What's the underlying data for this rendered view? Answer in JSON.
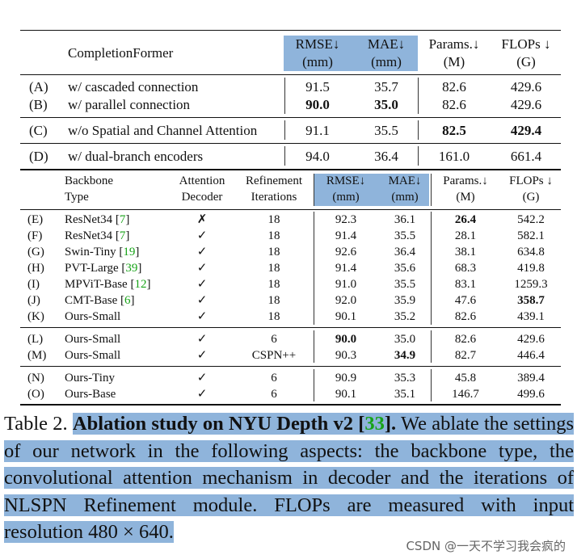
{
  "table1": {
    "header": {
      "title": "CompletionFormer",
      "rmse": "RMSE↓",
      "rmse_unit": "(mm)",
      "mae": "MAE↓",
      "mae_unit": "(mm)",
      "params": "Params.↓",
      "params_unit": "(M)",
      "flops": "FLOPs ↓",
      "flops_unit": "(G)"
    },
    "rows": [
      {
        "id": "(A)",
        "label": "w/ cascaded connection",
        "rmse": "91.5",
        "mae": "35.7",
        "params": "82.6",
        "flops": "429.6"
      },
      {
        "id": "(B)",
        "label": "w/ parallel connection",
        "rmse": "90.0",
        "mae": "35.0",
        "params": "82.6",
        "flops": "429.6"
      },
      {
        "id": "(C)",
        "label": "w/o Spatial and Channel Attention",
        "rmse": "91.1",
        "mae": "35.5",
        "params": "82.5",
        "flops": "429.4"
      },
      {
        "id": "(D)",
        "label": "w/ dual-branch encoders",
        "rmse": "94.0",
        "mae": "36.4",
        "params": "161.0",
        "flops": "661.4"
      }
    ]
  },
  "table2": {
    "header": {
      "backbone1": "Backbone",
      "backbone2": "Type",
      "att1": "Attention",
      "att2": "Decoder",
      "ref1": "Refinement",
      "ref2": "Iterations",
      "rmse": "RMSE↓",
      "rmse_unit": "(mm)",
      "mae": "MAE↓",
      "mae_unit": "(mm)",
      "params": "Params.↓",
      "params_unit": "(M)",
      "flops": "FLOPs ↓",
      "flops_unit": "(G)"
    },
    "rows": [
      {
        "id": "(E)",
        "name": "ResNet34",
        "cite": "7",
        "att": "✗",
        "iter": "18",
        "rmse": "92.3",
        "mae": "36.1",
        "params": "26.4",
        "flops": "542.2"
      },
      {
        "id": "(F)",
        "name": "ResNet34",
        "cite": "7",
        "att": "✓",
        "iter": "18",
        "rmse": "91.4",
        "mae": "35.5",
        "params": "28.1",
        "flops": "582.1"
      },
      {
        "id": "(G)",
        "name": "Swin-Tiny",
        "cite": "19",
        "att": "✓",
        "iter": "18",
        "rmse": "92.6",
        "mae": "36.4",
        "params": "38.1",
        "flops": "634.8"
      },
      {
        "id": "(H)",
        "name": "PVT-Large",
        "cite": "39",
        "att": "✓",
        "iter": "18",
        "rmse": "91.4",
        "mae": "35.6",
        "params": "68.3",
        "flops": "419.8"
      },
      {
        "id": "(I)",
        "name": "MPViT-Base",
        "cite": "12",
        "att": "✓",
        "iter": "18",
        "rmse": "91.0",
        "mae": "35.5",
        "params": "83.1",
        "flops": "1259.3"
      },
      {
        "id": "(J)",
        "name": "CMT-Base",
        "cite": "6",
        "att": "✓",
        "iter": "18",
        "rmse": "92.0",
        "mae": "35.9",
        "params": "47.6",
        "flops": "358.7"
      },
      {
        "id": "(K)",
        "name": "Ours-Small",
        "cite": "",
        "att": "✓",
        "iter": "18",
        "rmse": "90.1",
        "mae": "35.2",
        "params": "82.6",
        "flops": "439.1"
      },
      {
        "id": "(L)",
        "name": "Ours-Small",
        "cite": "",
        "att": "✓",
        "iter": "6",
        "rmse": "90.0",
        "mae": "35.0",
        "params": "82.6",
        "flops": "429.6"
      },
      {
        "id": "(M)",
        "name": "Ours-Small",
        "cite": "",
        "att": "✓",
        "iter": "CSPN++",
        "rmse": "90.3",
        "mae": "34.9",
        "params": "82.7",
        "flops": "446.4"
      },
      {
        "id": "(N)",
        "name": "Ours-Tiny",
        "cite": "",
        "att": "✓",
        "iter": "6",
        "rmse": "90.9",
        "mae": "35.3",
        "params": "45.8",
        "flops": "389.4"
      },
      {
        "id": "(O)",
        "name": "Ours-Base",
        "cite": "",
        "att": "✓",
        "iter": "6",
        "rmse": "90.1",
        "mae": "35.1",
        "params": "146.7",
        "flops": "499.6"
      }
    ]
  },
  "caption": {
    "label": "Table 2.",
    "title": "Ablation study on NYU Depth v2 [",
    "cite": "33",
    "title_end": "].",
    "body": "We ablate the settings of our network in the following aspects: the backbone type, the convolutional attention mechanism in decoder and the iterations of NLSPN Refinement module. FLOPs are measured with input resolution",
    "resolution": "480 × 640",
    "end": "."
  },
  "watermark": "CSDN @一天不学习我会疯的",
  "colors": {
    "highlight": "#8fb4db",
    "cite_green": "#17a317"
  }
}
